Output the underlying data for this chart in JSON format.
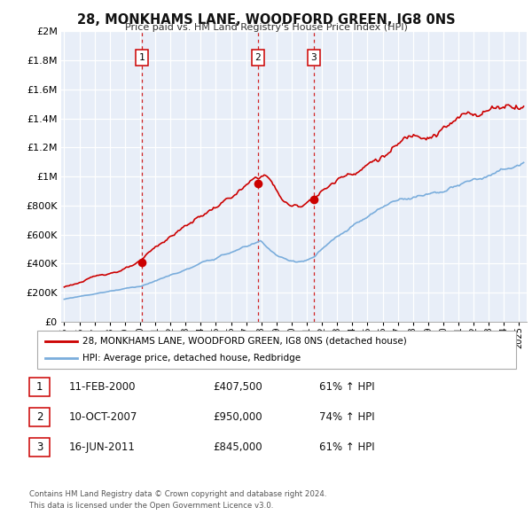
{
  "title": "28, MONKHAMS LANE, WOODFORD GREEN, IG8 0NS",
  "subtitle": "Price paid vs. HM Land Registry's House Price Index (HPI)",
  "legend_line1": "28, MONKHAMS LANE, WOODFORD GREEN, IG8 0NS (detached house)",
  "legend_line2": "HPI: Average price, detached house, Redbridge",
  "sale_color": "#cc0000",
  "hpi_color": "#7aaddc",
  "background_color": "#e8eef8",
  "sale_points": [
    {
      "year": 2000.11,
      "value": 407500,
      "label": "1"
    },
    {
      "year": 2007.78,
      "value": 950000,
      "label": "2"
    },
    {
      "year": 2011.46,
      "value": 845000,
      "label": "3"
    }
  ],
  "vline_years": [
    2000.11,
    2007.78,
    2011.46
  ],
  "table_rows": [
    [
      "1",
      "11-FEB-2000",
      "£407,500",
      "61% ↑ HPI"
    ],
    [
      "2",
      "10-OCT-2007",
      "£950,000",
      "74% ↑ HPI"
    ],
    [
      "3",
      "16-JUN-2011",
      "£845,000",
      "61% ↑ HPI"
    ]
  ],
  "footer": "Contains HM Land Registry data © Crown copyright and database right 2024.\nThis data is licensed under the Open Government Licence v3.0.",
  "ylim": [
    0,
    2000000
  ],
  "yticks": [
    0,
    200000,
    400000,
    600000,
    800000,
    1000000,
    1200000,
    1400000,
    1600000,
    1800000,
    2000000
  ],
  "ytick_labels": [
    "£0",
    "£200K",
    "£400K",
    "£600K",
    "£800K",
    "£1M",
    "£1.2M",
    "£1.4M",
    "£1.6M",
    "£1.8M",
    "£2M"
  ],
  "xlim_start": 1994.8,
  "xlim_end": 2025.5
}
